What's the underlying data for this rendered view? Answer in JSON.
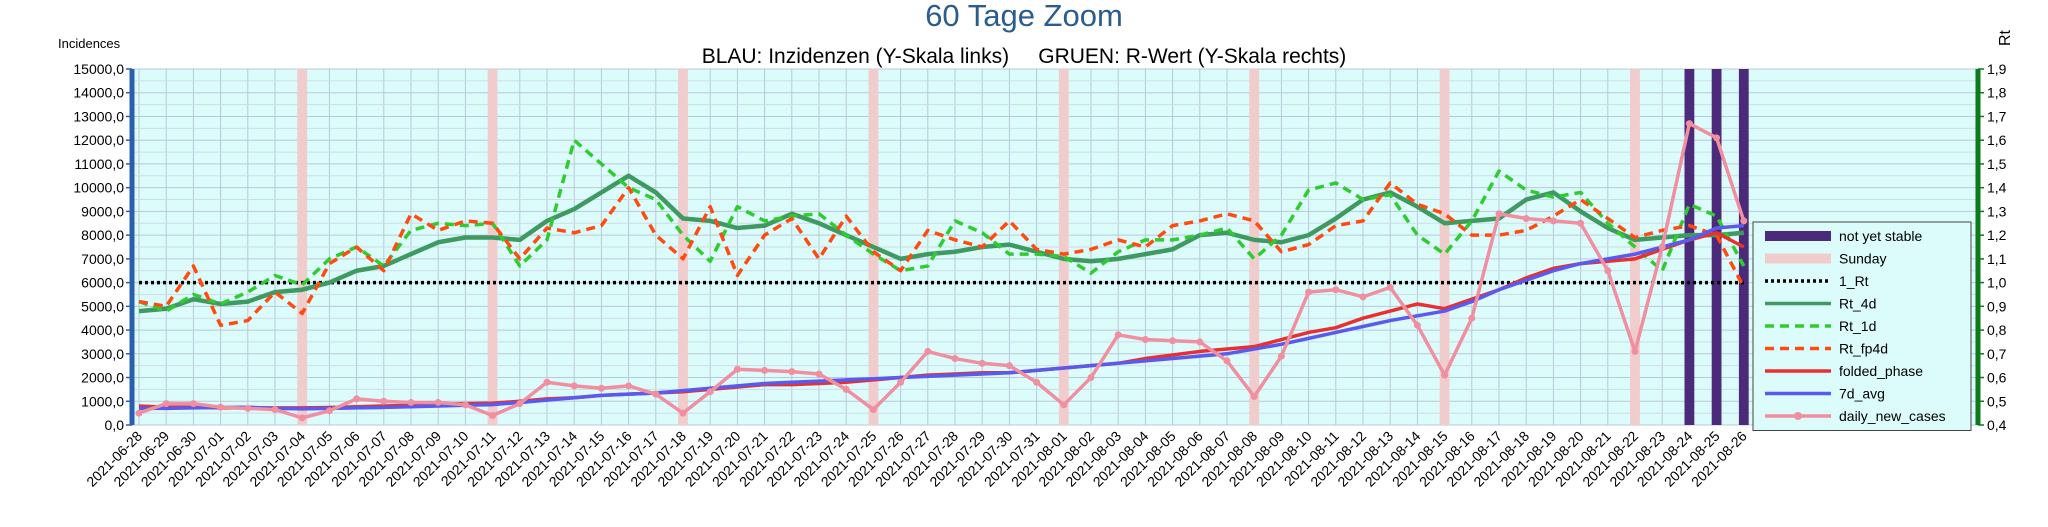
{
  "chart_data": {
    "type": "line",
    "title": "60 Tage Zoom",
    "subtitle": "BLAU: Inzidenzen (Y-Skala links)     GRUEN: R-Wert (Y-Skala rechts)",
    "y_label": "Incidences",
    "y2_label": "Rt",
    "grid": true,
    "legend": "right",
    "categories": [
      "2021-06-28",
      "2021-06-29",
      "2021-06-30",
      "2021-07-01",
      "2021-07-02",
      "2021-07-03",
      "2021-07-04",
      "2021-07-05",
      "2021-07-06",
      "2021-07-07",
      "2021-07-08",
      "2021-07-09",
      "2021-07-10",
      "2021-07-11",
      "2021-07-12",
      "2021-07-13",
      "2021-07-14",
      "2021-07-15",
      "2021-07-16",
      "2021-07-17",
      "2021-07-18",
      "2021-07-19",
      "2021-07-20",
      "2021-07-21",
      "2021-07-22",
      "2021-07-23",
      "2021-07-24",
      "2021-07-25",
      "2021-07-26",
      "2021-07-27",
      "2021-07-28",
      "2021-07-29",
      "2021-07-30",
      "2021-07-31",
      "2021-08-01",
      "2021-08-02",
      "2021-08-03",
      "2021-08-04",
      "2021-08-05",
      "2021-08-06",
      "2021-08-07",
      "2021-08-08",
      "2021-08-09",
      "2021-08-10",
      "2021-08-11",
      "2021-08-12",
      "2021-08-13",
      "2021-08-14",
      "2021-08-15",
      "2021-08-16",
      "2021-08-17",
      "2021-08-18",
      "2021-08-19",
      "2021-08-20",
      "2021-08-21",
      "2021-08-22",
      "2021-08-23",
      "2021-08-24",
      "2021-08-25",
      "2021-08-26"
    ],
    "ylim": [
      0,
      15000
    ],
    "yticks": [
      {
        "value": 0,
        "label": "0,0"
      },
      {
        "value": 1000,
        "label": "1000,0"
      },
      {
        "value": 2000,
        "label": "2000,0"
      },
      {
        "value": 3000,
        "label": "3000,0"
      },
      {
        "value": 4000,
        "label": "4000,0"
      },
      {
        "value": 5000,
        "label": "5000,0"
      },
      {
        "value": 6000,
        "label": "6000,0"
      },
      {
        "value": 7000,
        "label": "7000,0"
      },
      {
        "value": 8000,
        "label": "8000,0"
      },
      {
        "value": 9000,
        "label": "9000,0"
      },
      {
        "value": 10000,
        "label": "10000,0"
      },
      {
        "value": 11000,
        "label": "11000,0"
      },
      {
        "value": 12000,
        "label": "12000,0"
      },
      {
        "value": 13000,
        "label": "13000,0"
      },
      {
        "value": 14000,
        "label": "14000,0"
      },
      {
        "value": 15000,
        "label": "15000,0"
      }
    ],
    "y2lim": [
      0.4,
      1.9
    ],
    "y2ticks": [
      {
        "value": 0.4,
        "label": "0,4"
      },
      {
        "value": 0.5,
        "label": "0,5"
      },
      {
        "value": 0.6,
        "label": "0,6"
      },
      {
        "value": 0.7,
        "label": "0,7"
      },
      {
        "value": 0.8,
        "label": "0,8"
      },
      {
        "value": 0.9,
        "label": "0,9"
      },
      {
        "value": 1,
        "label": "1,0"
      },
      {
        "value": 1.1,
        "label": "1,1"
      },
      {
        "value": 1.2,
        "label": "1,2"
      },
      {
        "value": 1.3,
        "label": "1,3"
      },
      {
        "value": 1.4,
        "label": "1,4"
      },
      {
        "value": 1.5,
        "label": "1,5"
      },
      {
        "value": 1.6,
        "label": "1,6"
      },
      {
        "value": 1.7,
        "label": "1,7"
      },
      {
        "value": 1.8,
        "label": "1,8"
      },
      {
        "value": 1.9,
        "label": "1,9"
      }
    ],
    "series": [
      {
        "name": "not yet stable",
        "kind": "bar",
        "axis": "y",
        "color": "#4b2a7a",
        "values": [
          null,
          null,
          null,
          null,
          null,
          null,
          null,
          null,
          null,
          null,
          null,
          null,
          null,
          null,
          null,
          null,
          null,
          null,
          null,
          null,
          null,
          null,
          null,
          null,
          null,
          null,
          null,
          null,
          null,
          null,
          null,
          null,
          null,
          null,
          null,
          null,
          null,
          null,
          null,
          null,
          null,
          null,
          null,
          null,
          null,
          null,
          null,
          null,
          null,
          null,
          null,
          null,
          null,
          null,
          null,
          null,
          null,
          15000,
          15000,
          15000
        ]
      },
      {
        "name": "Sunday",
        "kind": "bar",
        "axis": "y",
        "color": "#f0cccc",
        "values": [
          null,
          null,
          null,
          null,
          null,
          null,
          15000,
          null,
          null,
          null,
          null,
          null,
          null,
          15000,
          null,
          null,
          null,
          null,
          null,
          null,
          15000,
          null,
          null,
          null,
          null,
          null,
          null,
          15000,
          null,
          null,
          null,
          null,
          null,
          null,
          15000,
          null,
          null,
          null,
          null,
          null,
          null,
          15000,
          null,
          null,
          null,
          null,
          null,
          null,
          15000,
          null,
          null,
          null,
          null,
          null,
          null,
          15000,
          null,
          null,
          null,
          null
        ]
      },
      {
        "name": "1_Rt",
        "kind": "line",
        "axis": "y2",
        "style": "dotted",
        "color": "#000000",
        "values": [
          1,
          1,
          1,
          1,
          1,
          1,
          1,
          1,
          1,
          1,
          1,
          1,
          1,
          1,
          1,
          1,
          1,
          1,
          1,
          1,
          1,
          1,
          1,
          1,
          1,
          1,
          1,
          1,
          1,
          1,
          1,
          1,
          1,
          1,
          1,
          1,
          1,
          1,
          1,
          1,
          1,
          1,
          1,
          1,
          1,
          1,
          1,
          1,
          1,
          1,
          1,
          1,
          1,
          1,
          1,
          1,
          1,
          1,
          1,
          1
        ]
      },
      {
        "name": "Rt_4d",
        "kind": "line",
        "axis": "y2",
        "style": "solid",
        "color": "#3f9a62",
        "values": [
          0.88,
          0.89,
          0.93,
          0.91,
          0.92,
          0.96,
          0.97,
          1.0,
          1.05,
          1.07,
          1.12,
          1.17,
          1.19,
          1.19,
          1.18,
          1.26,
          1.31,
          1.38,
          1.45,
          1.38,
          1.27,
          1.26,
          1.23,
          1.24,
          1.29,
          1.25,
          1.2,
          1.15,
          1.1,
          1.12,
          1.13,
          1.15,
          1.16,
          1.13,
          1.1,
          1.09,
          1.1,
          1.12,
          1.14,
          1.2,
          1.21,
          1.18,
          1.17,
          1.2,
          1.27,
          1.35,
          1.38,
          1.32,
          1.25,
          1.26,
          1.27,
          1.35,
          1.38,
          1.3,
          1.23,
          1.18,
          1.19,
          1.2,
          1.2,
          1.21
        ]
      },
      {
        "name": "Rt_1d",
        "kind": "line",
        "axis": "y2",
        "style": "dashed",
        "color": "#2ecc2e",
        "values": [
          0.92,
          0.88,
          0.95,
          0.91,
          0.96,
          1.03,
          0.99,
          1.1,
          1.15,
          1.07,
          1.22,
          1.25,
          1.24,
          1.25,
          1.07,
          1.18,
          1.6,
          1.5,
          1.4,
          1.35,
          1.2,
          1.09,
          1.32,
          1.26,
          1.28,
          1.29,
          1.2,
          1.12,
          1.05,
          1.07,
          1.26,
          1.21,
          1.12,
          1.12,
          1.11,
          1.04,
          1.13,
          1.18,
          1.18,
          1.2,
          1.23,
          1.1,
          1.2,
          1.39,
          1.42,
          1.35,
          1.37,
          1.2,
          1.12,
          1.26,
          1.47,
          1.39,
          1.36,
          1.38,
          1.25,
          1.15,
          1.05,
          1.33,
          1.28,
          1.07
        ]
      },
      {
        "name": "Rt_fp4d",
        "kind": "line",
        "axis": "y2",
        "style": "dashed",
        "color": "#ff4a10",
        "values": [
          0.92,
          0.9,
          1.07,
          0.82,
          0.84,
          0.96,
          0.87,
          1.08,
          1.15,
          1.05,
          1.29,
          1.22,
          1.26,
          1.25,
          1.1,
          1.23,
          1.21,
          1.24,
          1.4,
          1.2,
          1.1,
          1.32,
          1.03,
          1.2,
          1.27,
          1.1,
          1.28,
          1.13,
          1.05,
          1.22,
          1.18,
          1.15,
          1.26,
          1.14,
          1.12,
          1.14,
          1.18,
          1.15,
          1.24,
          1.26,
          1.29,
          1.26,
          1.13,
          1.16,
          1.24,
          1.26,
          1.42,
          1.33,
          1.29,
          1.2,
          1.2,
          1.22,
          1.28,
          1.35,
          1.27,
          1.19,
          1.22,
          1.24,
          1.2,
          0.98
        ]
      },
      {
        "name": "folded_phase",
        "kind": "line",
        "axis": "y",
        "style": "solid",
        "color": "#e83030",
        "values": [
          800,
          750,
          750,
          720,
          720,
          720,
          720,
          740,
          770,
          800,
          830,
          880,
          900,
          920,
          1000,
          1100,
          1150,
          1250,
          1300,
          1350,
          1400,
          1500,
          1600,
          1700,
          1700,
          1750,
          1800,
          1900,
          2000,
          2100,
          2150,
          2200,
          2200,
          2300,
          2400,
          2500,
          2600,
          2800,
          2950,
          3100,
          3200,
          3300,
          3600,
          3900,
          4100,
          4500,
          4800,
          5100,
          4900,
          5300,
          5700,
          6200,
          6600,
          6800,
          6900,
          7000,
          7400,
          7800,
          8100,
          7500
        ]
      },
      {
        "name": "7d_avg",
        "kind": "line",
        "axis": "y",
        "style": "solid",
        "color": "#5a5aee",
        "values": [
          700,
          700,
          720,
          740,
          750,
          700,
          680,
          700,
          720,
          740,
          770,
          800,
          830,
          860,
          950,
          1050,
          1150,
          1250,
          1300,
          1350,
          1450,
          1550,
          1650,
          1750,
          1800,
          1850,
          1900,
          1950,
          2000,
          2050,
          2100,
          2150,
          2200,
          2300,
          2400,
          2500,
          2600,
          2700,
          2800,
          2900,
          3000,
          3200,
          3400,
          3650,
          3900,
          4150,
          4400,
          4600,
          4800,
          5200,
          5700,
          6100,
          6500,
          6800,
          7000,
          7200,
          7500,
          7800,
          8300,
          8400
        ]
      },
      {
        "name": "daily_new_cases",
        "kind": "line",
        "axis": "y",
        "style": "solid",
        "marker": true,
        "color": "#f08fa0",
        "values": [
          500,
          900,
          900,
          750,
          700,
          650,
          300,
          600,
          1100,
          1000,
          950,
          950,
          850,
          400,
          900,
          1800,
          1650,
          1550,
          1650,
          1300,
          500,
          1400,
          2350,
          2300,
          2250,
          2150,
          1500,
          650,
          1800,
          3100,
          2800,
          2600,
          2500,
          1800,
          850,
          2000,
          3800,
          3600,
          3550,
          3500,
          2700,
          1200,
          2900,
          5600,
          5700,
          5400,
          5800,
          4200,
          2100,
          4500,
          8900,
          8700,
          8600,
          8500,
          6500,
          3100,
          7500,
          12700,
          12100,
          8600
        ]
      }
    ]
  }
}
